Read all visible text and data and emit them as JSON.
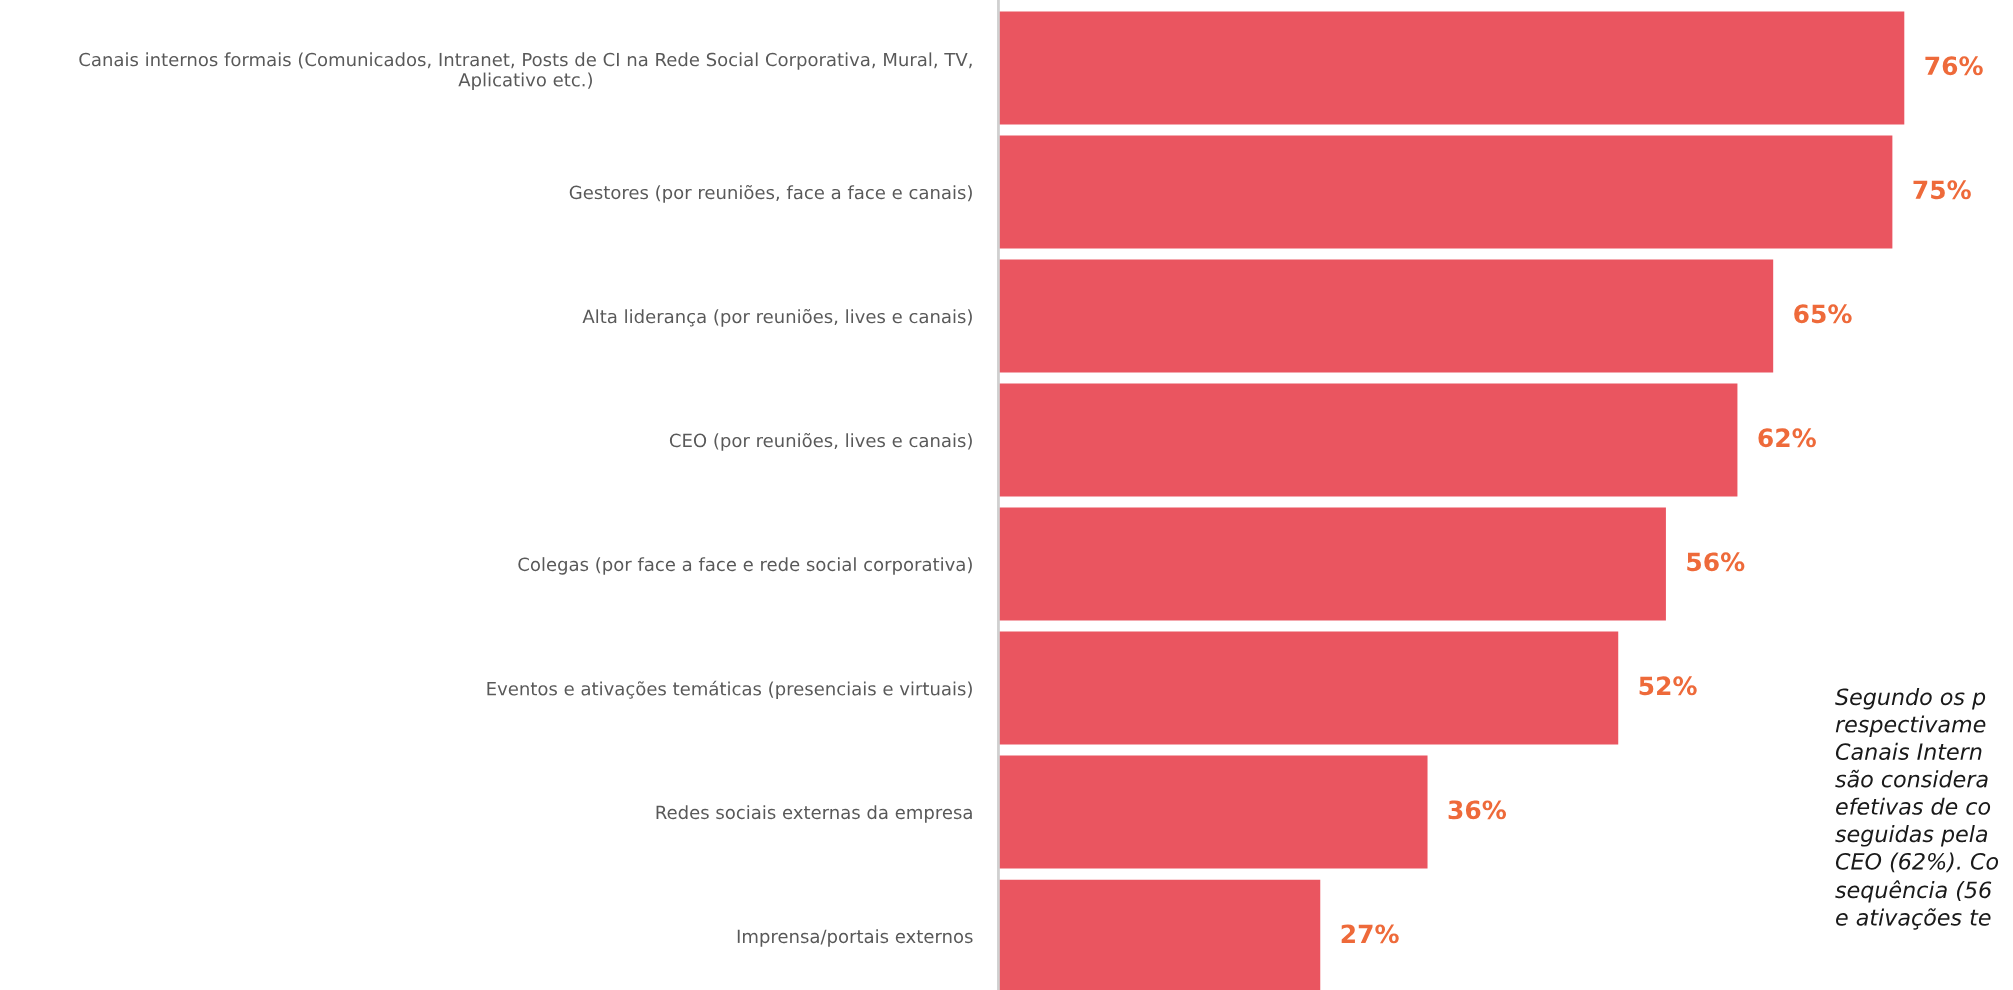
{
  "chart_data": {
    "type": "bar",
    "orientation": "horizontal",
    "categories": [
      "Canais internos formais (Comunicados, Intranet, Posts de CI na Rede Social Corporativa, Mural, TV,\nAplicativo etc.)",
      "Gestores (por reuniões, face a face e canais)",
      "Alta liderança (por reuniões, lives e canais)",
      "CEO (por reuniões, lives e canais)",
      "Colegas (por face a face e rede social corporativa)",
      "Eventos e ativações temáticas (presenciais e virtuais)",
      "Redes sociais externas da empresa",
      "Imprensa/portais externos"
    ],
    "values": [
      76,
      75,
      65,
      62,
      56,
      52,
      36,
      27
    ],
    "value_labels": [
      "76%",
      "75%",
      "65%",
      "62%",
      "56%",
      "52%",
      "36%",
      "27%"
    ],
    "color": "#ea5560",
    "tick_labels": "y",
    "annotations": [
      "Segundo os p\nrespectivame\nCanais Intern\nsão considera\nefetivas de co\nseguidas pela\nCEO (62%). Co\nsequência (56\ne ativações te"
    ]
  }
}
